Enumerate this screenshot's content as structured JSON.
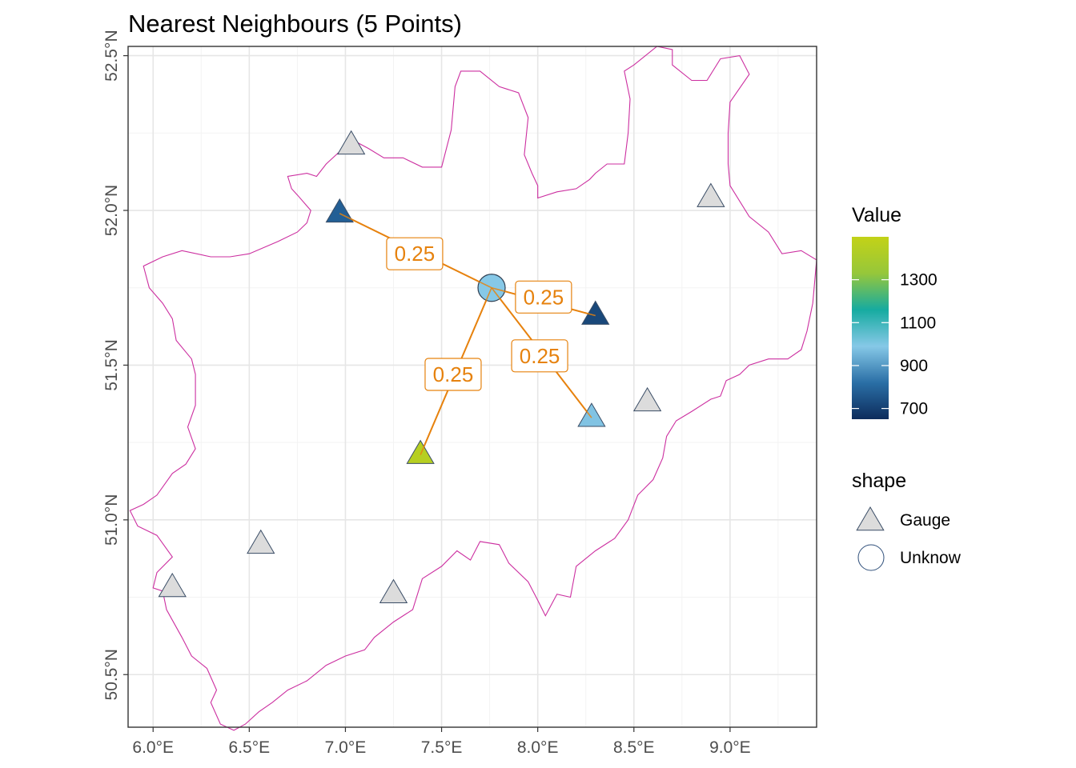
{
  "chart_data": {
    "type": "scatter",
    "title": "Nearest Neighbours (5 Points)",
    "xlim": [
      5.87,
      9.45
    ],
    "ylim": [
      50.33,
      52.53
    ],
    "grid": true,
    "x_ticks": [
      {
        "value": 6.0,
        "label": "6.0°E"
      },
      {
        "value": 6.5,
        "label": "6.5°E"
      },
      {
        "value": 7.0,
        "label": "7.0°E"
      },
      {
        "value": 7.5,
        "label": "7.5°E"
      },
      {
        "value": 8.0,
        "label": "8.0°E"
      },
      {
        "value": 8.5,
        "label": "8.5°E"
      },
      {
        "value": 9.0,
        "label": "9.0°E"
      }
    ],
    "y_ticks": [
      {
        "value": 50.5,
        "label": "50.5°N"
      },
      {
        "value": 51.0,
        "label": "51.0°N"
      },
      {
        "value": 51.5,
        "label": "51.5°N"
      },
      {
        "value": 52.0,
        "label": "52.0°N"
      },
      {
        "value": 52.5,
        "label": "52.5°N"
      }
    ],
    "boundary_color": "#cc2fa0",
    "boundary": [
      [
        7.04,
        52.24
      ],
      [
        7.06,
        52.22
      ],
      [
        7.12,
        52.2
      ],
      [
        7.2,
        52.17
      ],
      [
        7.3,
        52.17
      ],
      [
        7.4,
        52.14
      ],
      [
        7.5,
        52.14
      ],
      [
        7.55,
        52.26
      ],
      [
        7.57,
        52.4
      ],
      [
        7.6,
        52.45
      ],
      [
        7.7,
        52.45
      ],
      [
        7.8,
        52.4
      ],
      [
        7.9,
        52.38
      ],
      [
        7.95,
        52.3
      ],
      [
        7.93,
        52.18
      ],
      [
        7.97,
        52.12
      ],
      [
        8.0,
        52.08
      ],
      [
        8.0,
        52.04
      ],
      [
        8.1,
        52.06
      ],
      [
        8.2,
        52.07
      ],
      [
        8.27,
        52.1
      ],
      [
        8.3,
        52.12
      ],
      [
        8.36,
        52.15
      ],
      [
        8.45,
        52.15
      ],
      [
        8.47,
        52.25
      ],
      [
        8.48,
        52.36
      ],
      [
        8.45,
        52.45
      ],
      [
        8.5,
        52.47
      ],
      [
        8.62,
        52.53
      ],
      [
        8.7,
        52.52
      ],
      [
        8.7,
        52.47
      ],
      [
        8.8,
        52.42
      ],
      [
        8.88,
        52.42
      ],
      [
        8.95,
        52.49
      ],
      [
        9.05,
        52.5
      ],
      [
        9.1,
        52.44
      ],
      [
        9.0,
        52.35
      ],
      [
        8.99,
        52.25
      ],
      [
        8.99,
        52.15
      ],
      [
        9.0,
        52.08
      ],
      [
        9.1,
        51.98
      ],
      [
        9.2,
        51.93
      ],
      [
        9.27,
        51.86
      ],
      [
        9.37,
        51.87
      ],
      [
        9.45,
        51.84
      ],
      [
        9.43,
        51.7
      ],
      [
        9.4,
        51.61
      ],
      [
        9.37,
        51.55
      ],
      [
        9.3,
        51.52
      ],
      [
        9.2,
        51.52
      ],
      [
        9.1,
        51.5
      ],
      [
        9.05,
        51.47
      ],
      [
        8.98,
        51.45
      ],
      [
        8.95,
        51.4
      ],
      [
        8.9,
        51.39
      ],
      [
        8.8,
        51.35
      ],
      [
        8.72,
        51.32
      ],
      [
        8.67,
        51.27
      ],
      [
        8.65,
        51.2
      ],
      [
        8.6,
        51.13
      ],
      [
        8.52,
        51.08
      ],
      [
        8.47,
        51.0
      ],
      [
        8.4,
        50.94
      ],
      [
        8.3,
        50.9
      ],
      [
        8.2,
        50.85
      ],
      [
        8.17,
        50.75
      ],
      [
        8.1,
        50.76
      ],
      [
        8.04,
        50.69
      ],
      [
        8.0,
        50.74
      ],
      [
        7.95,
        50.8
      ],
      [
        7.85,
        50.86
      ],
      [
        7.8,
        50.92
      ],
      [
        7.7,
        50.93
      ],
      [
        7.65,
        50.87
      ],
      [
        7.58,
        50.9
      ],
      [
        7.5,
        50.85
      ],
      [
        7.4,
        50.81
      ],
      [
        7.35,
        50.71
      ],
      [
        7.25,
        50.67
      ],
      [
        7.15,
        50.62
      ],
      [
        7.1,
        50.58
      ],
      [
        7.0,
        50.56
      ],
      [
        6.9,
        50.53
      ],
      [
        6.8,
        50.48
      ],
      [
        6.7,
        50.45
      ],
      [
        6.62,
        50.41
      ],
      [
        6.55,
        50.38
      ],
      [
        6.48,
        50.34
      ],
      [
        6.42,
        50.32
      ],
      [
        6.35,
        50.34
      ],
      [
        6.3,
        50.41
      ],
      [
        6.33,
        50.45
      ],
      [
        6.28,
        50.52
      ],
      [
        6.2,
        50.56
      ],
      [
        6.15,
        50.62
      ],
      [
        6.07,
        50.71
      ],
      [
        6.05,
        50.77
      ],
      [
        6.0,
        50.78
      ],
      [
        6.02,
        50.83
      ],
      [
        6.1,
        50.88
      ],
      [
        6.02,
        50.95
      ],
      [
        5.92,
        50.98
      ],
      [
        5.88,
        51.03
      ],
      [
        5.95,
        51.05
      ],
      [
        6.02,
        51.08
      ],
      [
        6.1,
        51.15
      ],
      [
        6.17,
        51.18
      ],
      [
        6.22,
        51.23
      ],
      [
        6.18,
        51.3
      ],
      [
        6.22,
        51.37
      ],
      [
        6.22,
        51.47
      ],
      [
        6.2,
        51.52
      ],
      [
        6.12,
        51.58
      ],
      [
        6.1,
        51.65
      ],
      [
        6.05,
        51.7
      ],
      [
        5.98,
        51.75
      ],
      [
        5.95,
        51.82
      ],
      [
        6.05,
        51.85
      ],
      [
        6.15,
        51.87
      ],
      [
        6.3,
        51.85
      ],
      [
        6.4,
        51.85
      ],
      [
        6.5,
        51.86
      ],
      [
        6.65,
        51.9
      ],
      [
        6.75,
        51.93
      ],
      [
        6.8,
        51.96
      ],
      [
        6.82,
        52.0
      ],
      [
        6.75,
        52.05
      ],
      [
        6.72,
        52.07
      ],
      [
        6.7,
        52.11
      ],
      [
        6.8,
        52.12
      ],
      [
        6.85,
        52.11
      ],
      [
        6.9,
        52.15
      ],
      [
        6.97,
        52.19
      ],
      [
        7.04,
        52.24
      ]
    ],
    "colorbar": {
      "title": "Value",
      "min": 650,
      "max": 1500,
      "ticks": [
        700,
        900,
        1100,
        1300
      ],
      "colors": [
        "#0d2c5c",
        "#2a6fa6",
        "#86c8e7",
        "#16aba0",
        "#96c73a",
        "#c3d217"
      ]
    },
    "shape_legend": {
      "title": "shape",
      "items": [
        {
          "shape": "triangle",
          "label": "Gauge"
        },
        {
          "shape": "circle",
          "label": "Unknow"
        }
      ]
    },
    "gauges_unselected": [
      {
        "lon": 7.03,
        "lat": 52.21
      },
      {
        "lon": 8.9,
        "lat": 52.04
      },
      {
        "lon": 8.57,
        "lat": 51.38
      },
      {
        "lon": 6.56,
        "lat": 50.92
      },
      {
        "lon": 6.1,
        "lat": 50.78
      },
      {
        "lon": 7.25,
        "lat": 50.76
      }
    ],
    "neighbours": [
      {
        "lon": 6.97,
        "lat": 51.99,
        "value": 780,
        "weight": "0.25",
        "label_lon": 7.36,
        "label_lat": 51.86
      },
      {
        "lon": 8.3,
        "lat": 51.66,
        "value": 720,
        "weight": "0.25",
        "label_lon": 8.03,
        "label_lat": 51.72
      },
      {
        "lon": 8.28,
        "lat": 51.33,
        "value": 980,
        "weight": "0.25",
        "label_lon": 8.01,
        "label_lat": 51.53
      },
      {
        "lon": 7.39,
        "lat": 51.21,
        "value": 1450,
        "weight": "0.25",
        "label_lon": 7.56,
        "label_lat": 51.47
      }
    ],
    "unknown": {
      "lon": 7.76,
      "lat": 51.75,
      "value": 990
    },
    "neutral_fill": "#dcdcdc",
    "line_color": "#e6820e"
  }
}
